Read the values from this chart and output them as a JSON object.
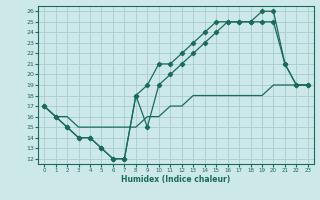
{
  "xlabel": "Humidex (Indice chaleur)",
  "bg_color": "#cce8e8",
  "grid_color": "#aacccc",
  "line_color": "#1a6b5a",
  "xlim": [
    -0.5,
    23.5
  ],
  "ylim": [
    11.5,
    26.5
  ],
  "xticks": [
    0,
    1,
    2,
    3,
    4,
    5,
    6,
    7,
    8,
    9,
    10,
    11,
    12,
    13,
    14,
    15,
    16,
    17,
    18,
    19,
    20,
    21,
    22,
    23
  ],
  "yticks": [
    12,
    13,
    14,
    15,
    16,
    17,
    18,
    19,
    20,
    21,
    22,
    23,
    24,
    25,
    26
  ],
  "line1_x": [
    0,
    1,
    2,
    3,
    4,
    5,
    6,
    7,
    8,
    9,
    10,
    11,
    12,
    13,
    14,
    15,
    16,
    17,
    18,
    19,
    20,
    21,
    22,
    23
  ],
  "line1_y": [
    17,
    16,
    15,
    14,
    14,
    13,
    12,
    12,
    18,
    15,
    19,
    20,
    21,
    22,
    23,
    24,
    25,
    25,
    25,
    26,
    26,
    21,
    19,
    19
  ],
  "line2_x": [
    0,
    1,
    2,
    3,
    4,
    5,
    6,
    7,
    8,
    9,
    10,
    11,
    12,
    13,
    14,
    15,
    16,
    17,
    18,
    19,
    20,
    21,
    22,
    23
  ],
  "line2_y": [
    17,
    16,
    15,
    14,
    14,
    13,
    12,
    12,
    18,
    19,
    21,
    21,
    22,
    23,
    24,
    25,
    25,
    25,
    25,
    25,
    25,
    21,
    19,
    19
  ],
  "line3_x": [
    0,
    1,
    2,
    3,
    4,
    5,
    6,
    7,
    8,
    9,
    10,
    11,
    12,
    13,
    14,
    15,
    16,
    17,
    18,
    19,
    20,
    21,
    22,
    23
  ],
  "line3_y": [
    17,
    16,
    16,
    15,
    15,
    15,
    15,
    15,
    15,
    16,
    16,
    17,
    17,
    18,
    18,
    18,
    18,
    18,
    18,
    18,
    19,
    19,
    19,
    19
  ]
}
